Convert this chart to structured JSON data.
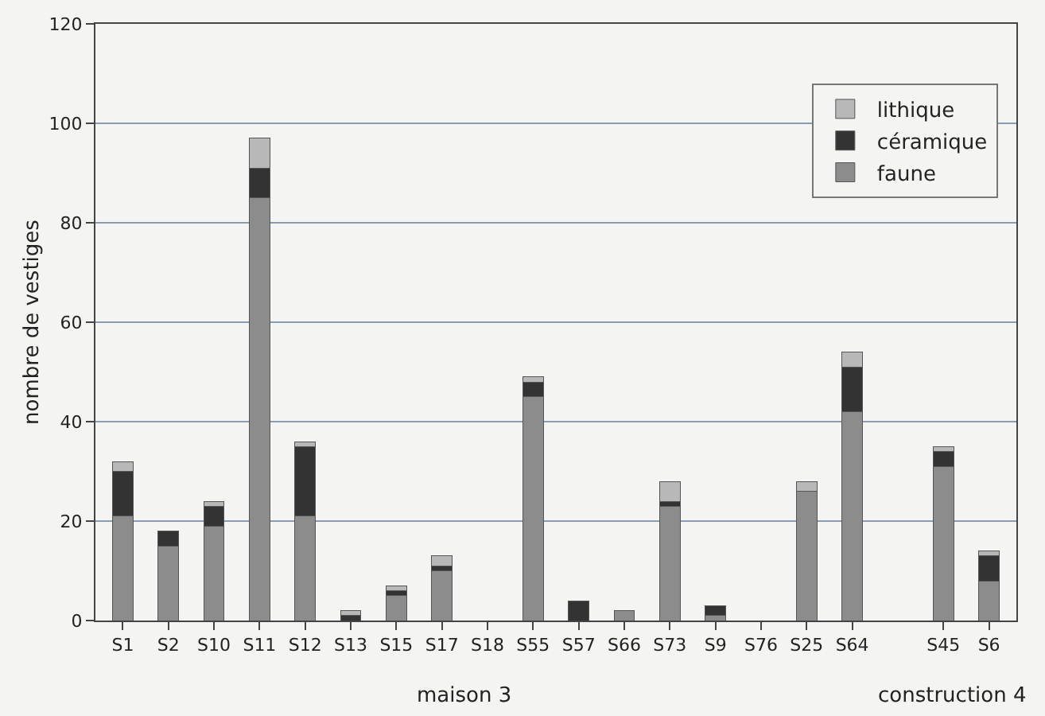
{
  "chart_data": {
    "type": "bar",
    "stacked": true,
    "ylabel": "nombre de vestiges",
    "categories": [
      "S1",
      "S2",
      "S10",
      "S11",
      "S12",
      "S13",
      "S15",
      "S17",
      "S18",
      "S55",
      "S57",
      "S66",
      "S73",
      "S9",
      "S76",
      "S25",
      "S64",
      null,
      "S45",
      "S6"
    ],
    "series": [
      {
        "name": "faune",
        "color": "#8c8c8c",
        "values": [
          21,
          15,
          19,
          85,
          21,
          0,
          5,
          10,
          0,
          45,
          0,
          2,
          23,
          1,
          0,
          26,
          42,
          null,
          31,
          8
        ]
      },
      {
        "name": "céramique",
        "color": "#333333",
        "values": [
          9,
          3,
          4,
          6,
          14,
          1,
          1,
          1,
          0,
          3,
          4,
          0,
          1,
          2,
          0,
          0,
          9,
          null,
          3,
          5
        ]
      },
      {
        "name": "lithique",
        "color": "#b8b8b8",
        "values": [
          2,
          0,
          1,
          6,
          1,
          1,
          1,
          2,
          0,
          1,
          0,
          0,
          4,
          0,
          0,
          2,
          3,
          null,
          1,
          1
        ]
      }
    ],
    "ylim": [
      0,
      120
    ],
    "yticks": [
      0,
      20,
      40,
      60,
      80,
      100,
      120
    ],
    "grid": "y",
    "legend": "top right",
    "annotations": [
      "maison 3",
      "construction 4"
    ]
  }
}
